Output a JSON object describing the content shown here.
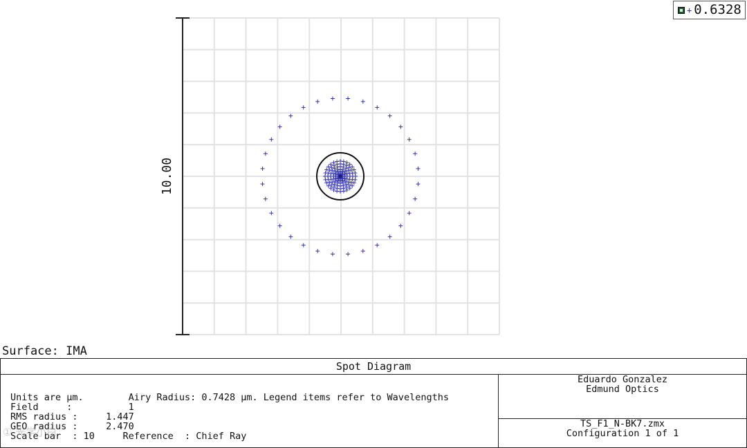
{
  "legend": {
    "marker": "+",
    "wavelength": "0.6328",
    "swatch_color": "#0f5f2a"
  },
  "plot": {
    "scale_label": "10.00",
    "grid_color": "#e2e2e2",
    "spot_color": "#3434b0",
    "airy_color": "#111111"
  },
  "surface_label": "Surface: IMA",
  "info": {
    "title": "Spot Diagram",
    "lines": [
      "Units are µm.        Airy Radius: 0.7428 µm. Legend items refer to Wavelengths",
      "Field     :          1",
      "RMS radius :     1.447",
      "GEO radius :     2.470",
      "Scale bar  : 10     Reference  : Chief Ray"
    ],
    "author": "Eduardo Gonzalez",
    "company": "Edmund Optics",
    "file": "TS_F1_N-BK7.zmx",
    "configuration": "Configuration 1 of 1"
  },
  "watermark": "① 光学小白"
}
